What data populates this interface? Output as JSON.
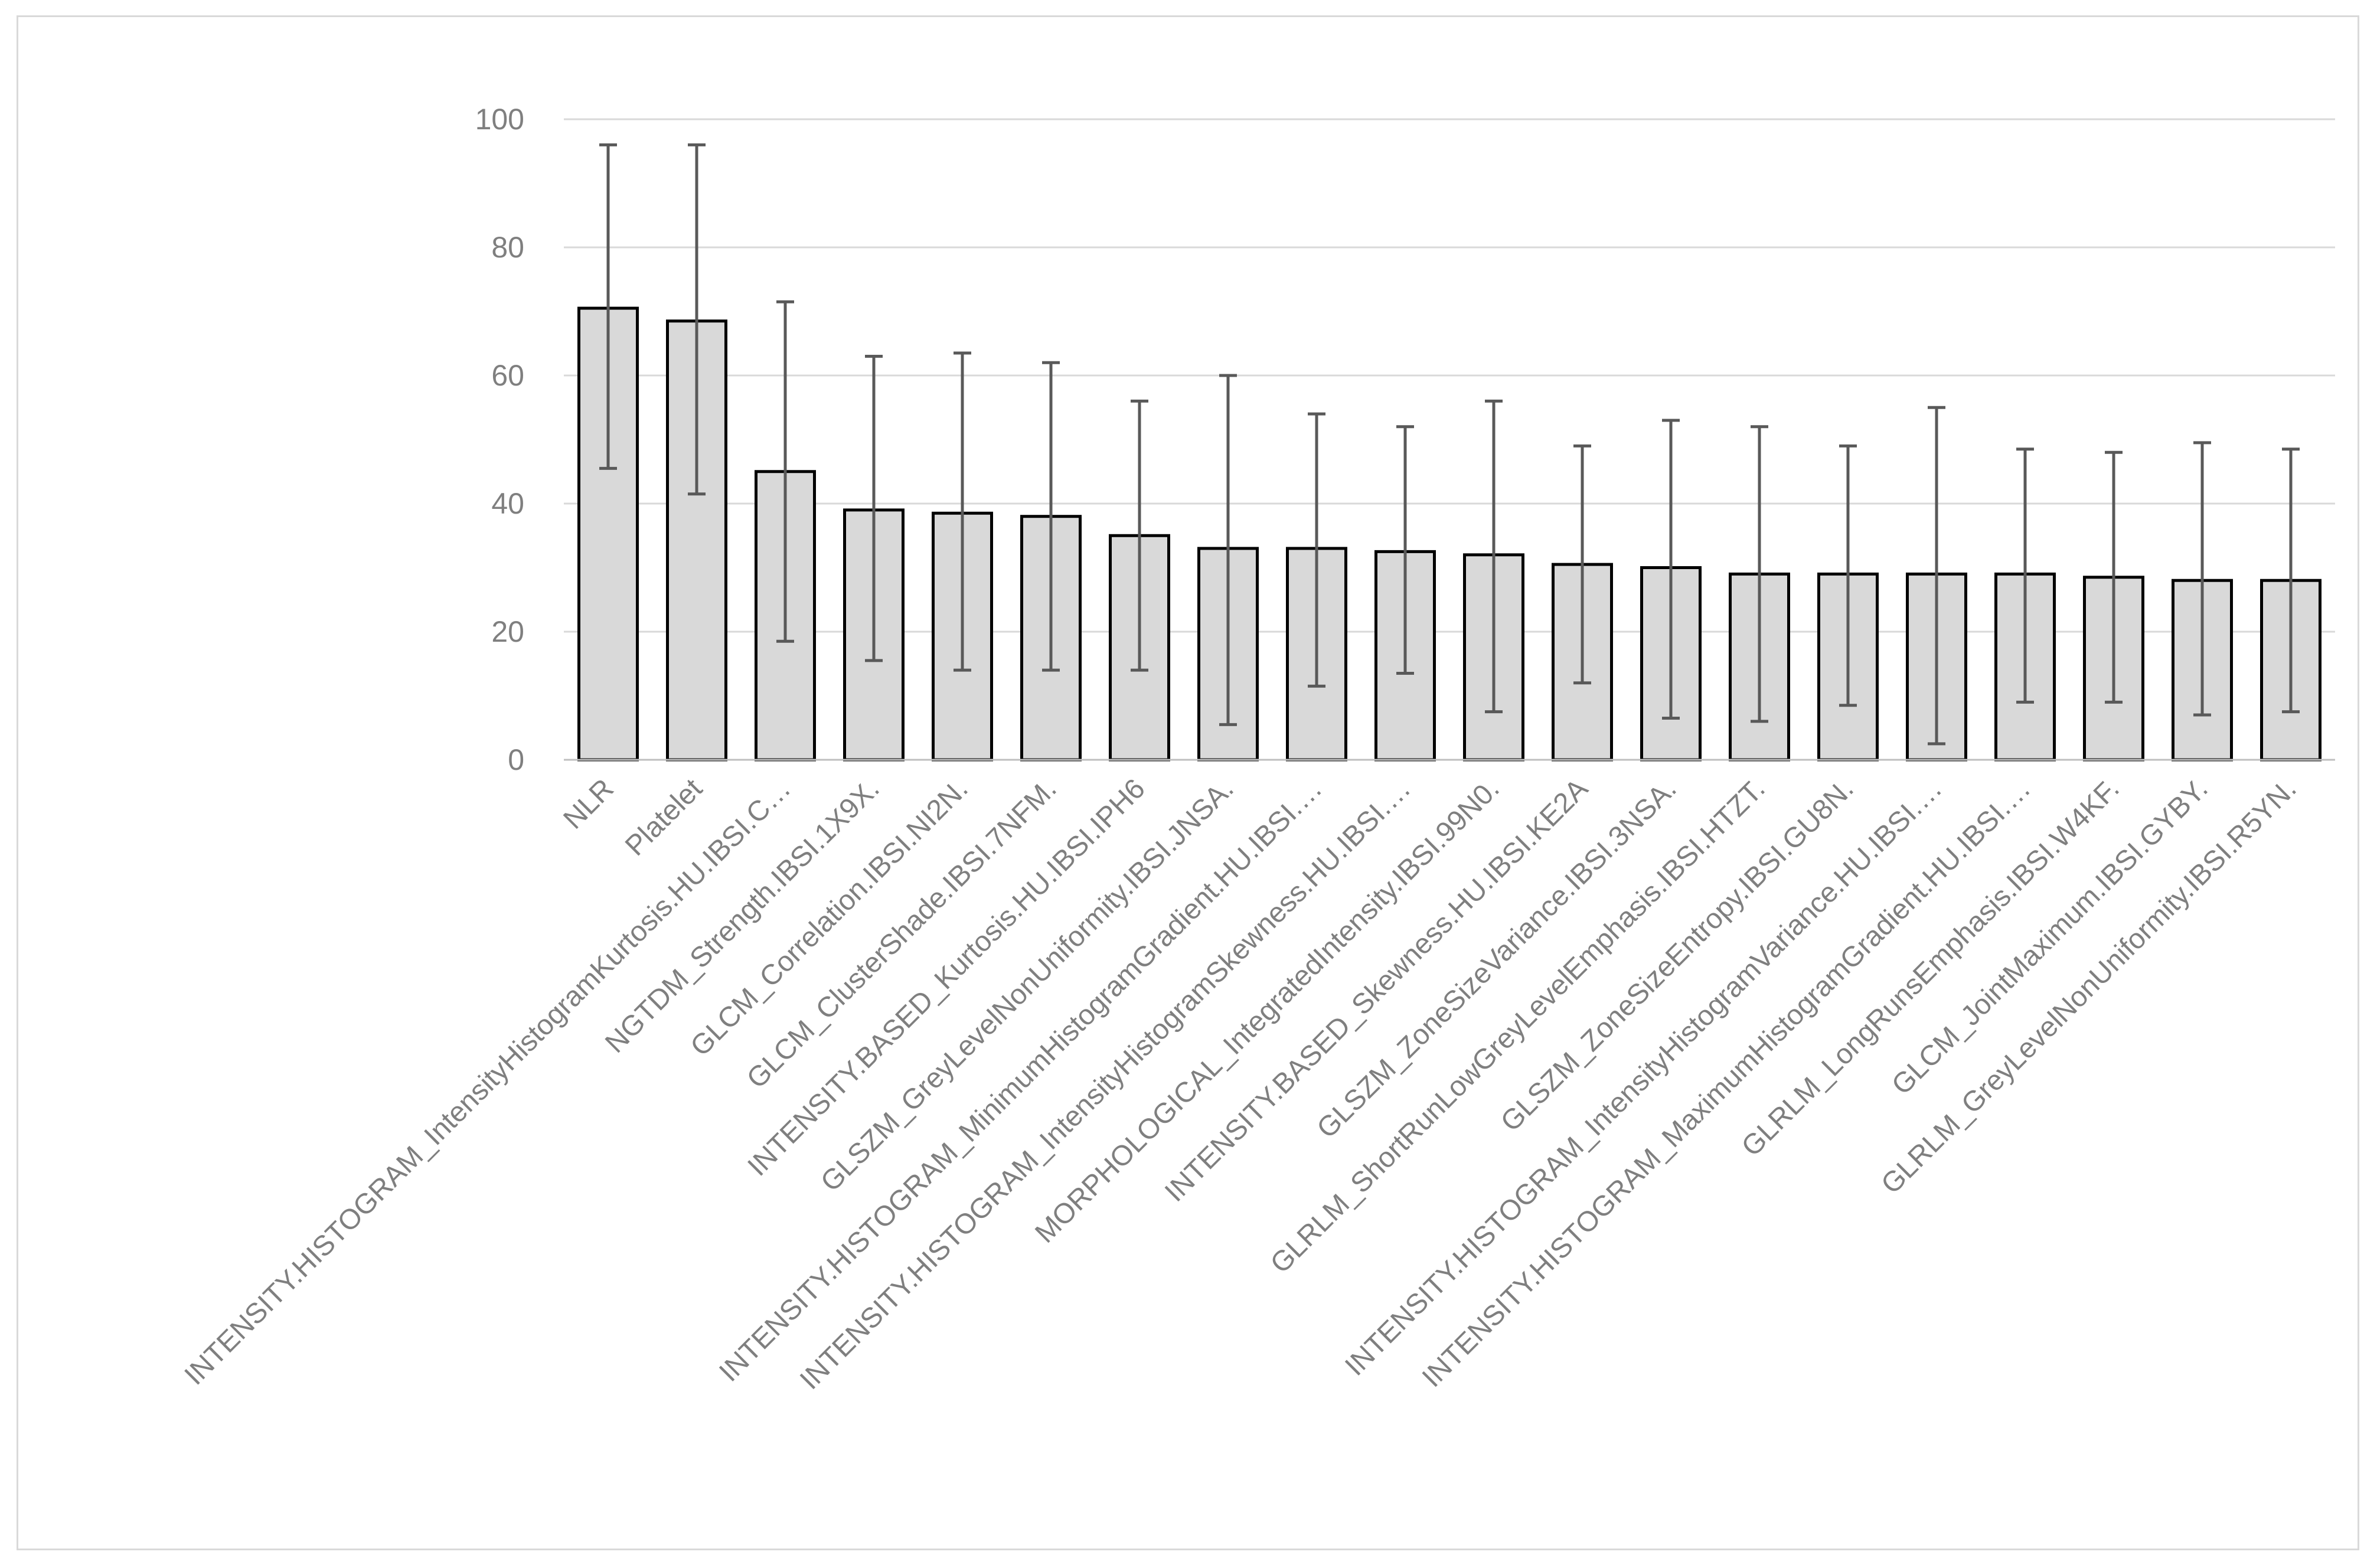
{
  "chart_data": {
    "type": "bar",
    "title": "",
    "xlabel": "",
    "ylabel": "",
    "ylim": [
      0,
      100
    ],
    "yticks": [
      0,
      20,
      40,
      60,
      80,
      100
    ],
    "grid": true,
    "legend": "none",
    "colors": {
      "bar_fill": "#d9d9d9",
      "bar_stroke": "#000000",
      "error_bar": "#595959",
      "grid": "#d9d9d9",
      "tick_text": "#7f7f7f",
      "frame": "#d9d9d9"
    },
    "categories": [
      "NLR",
      "Platelet",
      "INTENSITY.HISTOGRAM_IntensityHistogramKurtosis.HU.IBSI.C…",
      "NGTDM_Strength.IBSI.1X9X.",
      "GLCM_Correlation.IBSI.NI2N.",
      "GLCM_ClusterShade.IBSI.7NFM.",
      "INTENSITY.BASED_Kurtosis.HU.IBSI.IPH6",
      "GLSZM_GreyLevelNonUniformity.IBSI.JNSA.",
      "INTENSITY.HISTOGRAM_MinimumHistogramGradient.HU.IBSI.…",
      "INTENSITY.HISTOGRAM_IntensityHistogramSkewness.HU.IBSI.…",
      "MORPHOLOGICAL_IntegratedIntensity.IBSI.99N0.",
      "INTENSITY.BASED_Skewness.HU.IBSI.KE2A",
      "GLSZM_ZoneSizeVariance.IBSI.3NSA.",
      "GLRLM_ShortRunLowGreyLevelEmphasis.IBSI.HTZT.",
      "GLSZM_ZoneSizeEntropy.IBSI.GU8N.",
      "INTENSITY.HISTOGRAM_IntensityHistogramVariance.HU.IBSI.…",
      "INTENSITY.HISTOGRAM_MaximumHistogramGradient.HU.IBSI.…",
      "GLRLM_LongRunsEmphasis.IBSI.W4KF.",
      "GLCM_JointMaximum.IBSI.GYBY.",
      "GLRLM_GreyLevelNonUniformity.IBSI.R5YN."
    ],
    "values": [
      70.5,
      68.5,
      45,
      39,
      38.5,
      38,
      35,
      33,
      33,
      32.5,
      32,
      30.5,
      30,
      29,
      29,
      29,
      29,
      28.5,
      28,
      28
    ],
    "error_low": [
      45.5,
      41.5,
      18.5,
      15.5,
      14,
      14,
      14,
      5.5,
      11.5,
      13.5,
      7.5,
      12,
      6.5,
      6,
      8.5,
      2.5,
      9,
      9,
      7,
      7.5
    ],
    "error_high": [
      96,
      96,
      71.5,
      63,
      63.5,
      62,
      56,
      60,
      54,
      52,
      56,
      49,
      53,
      52,
      49,
      55,
      48.5,
      48,
      49.5,
      48.5
    ]
  }
}
